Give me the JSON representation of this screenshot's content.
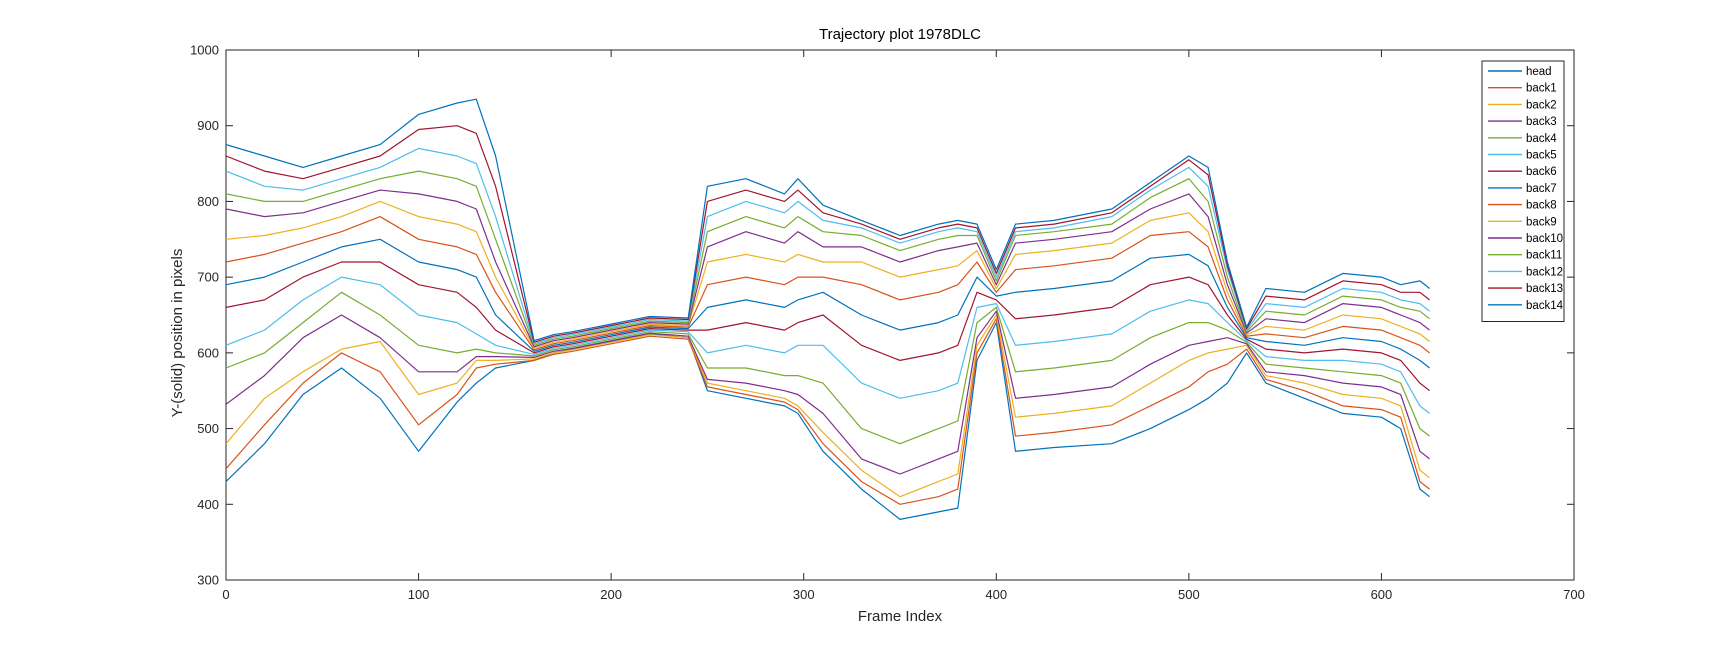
{
  "chart_data": {
    "type": "line",
    "title": "Trajectory plot 1978DLC",
    "xlabel": "Frame Index",
    "ylabel": "Y-(solid) position in pixels",
    "xlim": [
      0,
      700
    ],
    "ylim": [
      300,
      1000
    ],
    "xticks": [
      "0",
      "100",
      "200",
      "300",
      "400",
      "500",
      "600",
      "700"
    ],
    "yticks": [
      "300",
      "400",
      "500",
      "600",
      "700",
      "800",
      "900",
      "1000"
    ],
    "grid": false,
    "legend_position": "top-right",
    "x": [
      0,
      20,
      40,
      60,
      80,
      100,
      120,
      130,
      140,
      160,
      170,
      180,
      200,
      220,
      240,
      250,
      270,
      290,
      297,
      310,
      330,
      350,
      370,
      380,
      390,
      400,
      410,
      430,
      460,
      480,
      500,
      510,
      520,
      530,
      540,
      560,
      580,
      600,
      610,
      620,
      625
    ],
    "series": [
      {
        "name": "head",
        "color": "#0072BD",
        "values": [
          430,
          480,
          545,
          580,
          540,
          470,
          535,
          560,
          580,
          590,
          600,
          605,
          615,
          625,
          620,
          550,
          540,
          530,
          520,
          470,
          420,
          380,
          390,
          395,
          590,
          640,
          470,
          475,
          480,
          500,
          525,
          540,
          560,
          600,
          560,
          540,
          520,
          515,
          500,
          420,
          410
        ]
      },
      {
        "name": "back1",
        "color": "#D95319",
        "values": [
          447,
          505,
          560,
          600,
          575,
          505,
          545,
          580,
          585,
          590,
          598,
          602,
          612,
          622,
          618,
          555,
          545,
          535,
          525,
          480,
          430,
          400,
          410,
          420,
          600,
          645,
          490,
          495,
          505,
          530,
          555,
          575,
          585,
          605,
          565,
          550,
          530,
          525,
          515,
          430,
          420
        ]
      },
      {
        "name": "back2",
        "color": "#EDB120",
        "values": [
          480,
          540,
          575,
          605,
          615,
          545,
          560,
          590,
          590,
          592,
          600,
          604,
          614,
          624,
          620,
          560,
          550,
          540,
          530,
          495,
          445,
          410,
          430,
          440,
          610,
          650,
          515,
          520,
          530,
          560,
          590,
          600,
          605,
          610,
          570,
          560,
          545,
          540,
          530,
          445,
          435
        ]
      },
      {
        "name": "back3",
        "color": "#7E2F8E",
        "values": [
          532,
          570,
          620,
          650,
          620,
          575,
          575,
          595,
          595,
          594,
          602,
          606,
          616,
          626,
          622,
          565,
          560,
          550,
          545,
          520,
          460,
          440,
          460,
          470,
          620,
          655,
          540,
          545,
          555,
          585,
          610,
          615,
          620,
          612,
          575,
          570,
          560,
          555,
          545,
          470,
          460
        ]
      },
      {
        "name": "back4",
        "color": "#77AC30",
        "values": [
          580,
          600,
          640,
          680,
          650,
          610,
          600,
          605,
          600,
          596,
          604,
          608,
          618,
          628,
          625,
          580,
          580,
          570,
          570,
          560,
          500,
          480,
          500,
          510,
          640,
          660,
          575,
          580,
          590,
          620,
          640,
          640,
          630,
          614,
          585,
          580,
          575,
          570,
          560,
          500,
          490
        ]
      },
      {
        "name": "back5",
        "color": "#4DBEEE",
        "values": [
          610,
          630,
          670,
          700,
          690,
          650,
          640,
          625,
          610,
          598,
          606,
          610,
          620,
          630,
          628,
          600,
          610,
          600,
          610,
          610,
          560,
          540,
          550,
          560,
          660,
          665,
          610,
          615,
          625,
          655,
          670,
          665,
          640,
          616,
          595,
          590,
          590,
          585,
          575,
          530,
          520
        ]
      },
      {
        "name": "back6",
        "color": "#A2142F",
        "values": [
          660,
          670,
          700,
          720,
          720,
          690,
          680,
          660,
          630,
          600,
          608,
          612,
          622,
          632,
          630,
          630,
          640,
          630,
          640,
          650,
          610,
          590,
          600,
          610,
          680,
          670,
          645,
          650,
          660,
          690,
          700,
          690,
          650,
          618,
          605,
          600,
          605,
          600,
          590,
          560,
          550
        ]
      },
      {
        "name": "back7",
        "color": "#0072BD",
        "values": [
          690,
          700,
          720,
          740,
          750,
          720,
          710,
          700,
          650,
          602,
          610,
          614,
          624,
          634,
          632,
          660,
          670,
          660,
          670,
          680,
          650,
          630,
          640,
          650,
          700,
          675,
          680,
          685,
          695,
          725,
          730,
          715,
          660,
          620,
          615,
          610,
          620,
          615,
          605,
          590,
          580
        ]
      },
      {
        "name": "back8",
        "color": "#D95319",
        "values": [
          720,
          730,
          745,
          760,
          780,
          750,
          740,
          730,
          680,
          604,
          612,
          616,
          626,
          636,
          634,
          690,
          700,
          690,
          700,
          700,
          690,
          670,
          680,
          690,
          720,
          680,
          710,
          715,
          725,
          755,
          760,
          740,
          670,
          622,
          625,
          620,
          635,
          630,
          620,
          610,
          600
        ]
      },
      {
        "name": "back9",
        "color": "#EDB120",
        "values": [
          750,
          755,
          765,
          780,
          800,
          780,
          770,
          760,
          700,
          606,
          614,
          618,
          628,
          638,
          636,
          720,
          730,
          720,
          730,
          720,
          720,
          700,
          710,
          715,
          735,
          685,
          730,
          735,
          745,
          775,
          785,
          760,
          680,
          624,
          635,
          630,
          650,
          645,
          635,
          625,
          615
        ]
      },
      {
        "name": "back10",
        "color": "#7E2F8E",
        "values": [
          790,
          780,
          785,
          800,
          815,
          810,
          800,
          790,
          720,
          608,
          616,
          620,
          630,
          640,
          638,
          740,
          760,
          745,
          760,
          740,
          740,
          720,
          735,
          740,
          745,
          690,
          745,
          750,
          760,
          790,
          810,
          780,
          690,
          626,
          645,
          640,
          665,
          660,
          650,
          640,
          630
        ]
      },
      {
        "name": "back11",
        "color": "#77AC30",
        "values": [
          810,
          800,
          800,
          815,
          830,
          840,
          830,
          820,
          750,
          610,
          618,
          622,
          632,
          642,
          640,
          760,
          780,
          765,
          780,
          760,
          755,
          735,
          750,
          755,
          755,
          695,
          755,
          760,
          770,
          805,
          830,
          800,
          700,
          628,
          655,
          650,
          675,
          670,
          660,
          655,
          645
        ]
      },
      {
        "name": "back12",
        "color": "#4DBEEE",
        "values": [
          840,
          820,
          815,
          830,
          845,
          870,
          860,
          850,
          780,
          612,
          620,
          624,
          634,
          644,
          642,
          780,
          800,
          785,
          800,
          775,
          765,
          745,
          760,
          765,
          760,
          700,
          760,
          765,
          780,
          815,
          845,
          820,
          710,
          630,
          665,
          660,
          685,
          680,
          670,
          665,
          655
        ]
      },
      {
        "name": "back13",
        "color": "#A2142F",
        "values": [
          860,
          840,
          830,
          845,
          860,
          895,
          900,
          890,
          820,
          614,
          622,
          626,
          636,
          646,
          644,
          800,
          815,
          800,
          815,
          785,
          770,
          750,
          765,
          770,
          765,
          705,
          765,
          770,
          785,
          820,
          855,
          835,
          715,
          632,
          675,
          670,
          695,
          690,
          680,
          680,
          670
        ]
      },
      {
        "name": "back14",
        "color": "#0072BD",
        "values": [
          875,
          860,
          845,
          860,
          875,
          915,
          930,
          935,
          860,
          616,
          624,
          628,
          638,
          648,
          646,
          820,
          830,
          810,
          830,
          795,
          775,
          755,
          770,
          775,
          770,
          710,
          770,
          775,
          790,
          825,
          860,
          845,
          720,
          634,
          685,
          680,
          705,
          700,
          690,
          695,
          685
        ]
      }
    ]
  }
}
